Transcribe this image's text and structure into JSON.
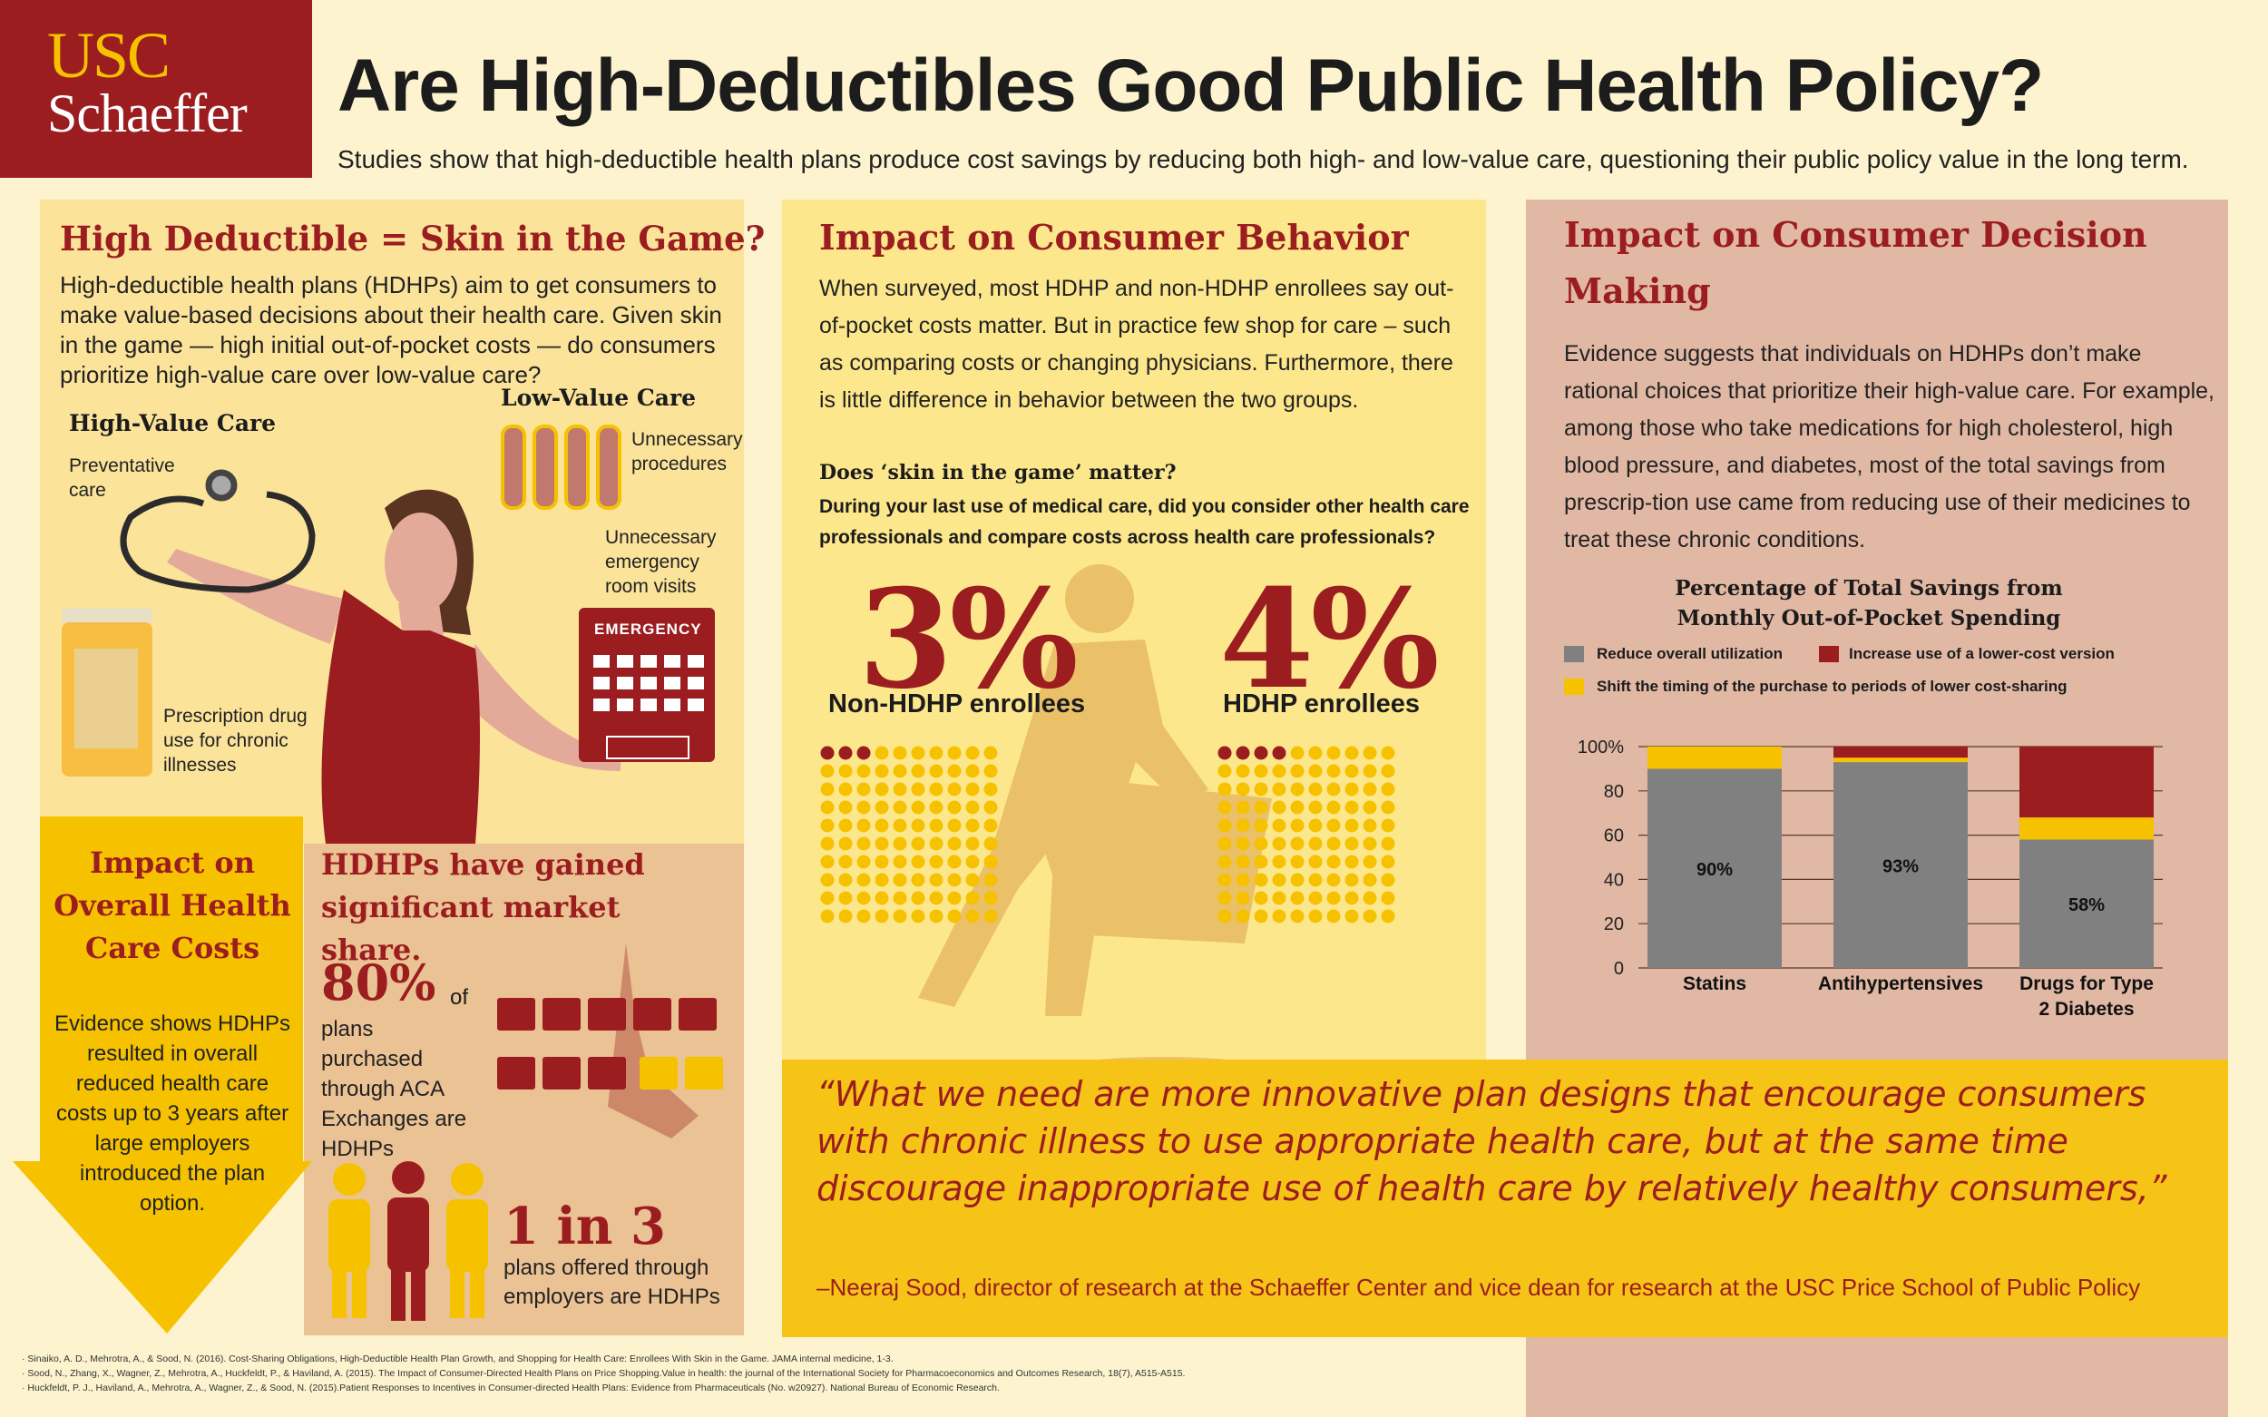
{
  "logo": {
    "line1": "USC",
    "line2": "Schaeffer"
  },
  "header": {
    "title": "Are High-Deductibles Good Public Health Policy?",
    "subtitle": "Studies show that high-deductible health plans produce cost savings by reducing both high- and low-value care, questioning their public policy value in the long term."
  },
  "skin": {
    "heading": "High Deductible = Skin in the Game?",
    "text": "High-deductible health plans (HDHPs) aim to get consumers to make value-based decisions about their health care. Given skin in the game — high initial out-of-pocket costs — do consumers prioritize high-value care over low-value care?",
    "high_value": "High-Value Care",
    "low_value": "Low-Value Care",
    "preventative": "Preventative care",
    "prescription": "Prescription drug use for chronic illnesses",
    "procedures": "Unnecessary procedures",
    "er_visits": "Unnecessary emergency room visits",
    "emergency": "EMERGENCY"
  },
  "costs": {
    "heading": "Impact on Overall Health Care Costs",
    "text": "Evidence shows HDHPs resulted in overall reduced health care costs up to 3 years after large employers introduced the plan option."
  },
  "market": {
    "heading": "HDHPs have gained significant market share.",
    "stat1": "80%",
    "stat1_of": "of",
    "stat1_text": "plans purchased through ACA Exchanges are HDHPs",
    "stat2": "1 in 3",
    "stat2_text": "plans offered through employers are HDHPs"
  },
  "behavior": {
    "heading": "Impact on Consumer Behavior",
    "text": "When surveyed, most HDHP and non-HDHP enrollees say out-of-pocket costs matter. But in practice few shop for care – such as comparing costs or changing physicians. Furthermore, there is little difference in behavior between the two groups.",
    "question_title": "Does ‘skin in the game’ matter?",
    "question": "During your last use of medical care, did you consider other health care professionals and compare costs across health care professionals?",
    "stat_non": "3%",
    "label_non": "Non-HDHP enrollees",
    "stat_hdhp": "4%",
    "label_hdhp": "HDHP enrollees"
  },
  "decision": {
    "heading": "Impact on Consumer Decision Making",
    "text": "Evidence suggests that individuals on HDHPs don’t make rational choices that prioritize their high-value care.  For example, among those who take medications for high cholesterol, high blood pressure, and diabetes, most of the total savings from prescrip-tion use came from  reducing use of their medicines to treat these chronic conditions."
  },
  "chart_data": {
    "type": "bar",
    "stacked": true,
    "title": "Percentage of Total Savings from Monthly Out-of-Pocket Spending",
    "categories": [
      "Statins",
      "Antihypertensives",
      "Drugs for Type 2 Diabetes"
    ],
    "series": [
      {
        "name": "Reduce overall utilization",
        "color": "#808080",
        "values": [
          90,
          93,
          58
        ],
        "labels": [
          "90%",
          "93%",
          "58%"
        ]
      },
      {
        "name": "Shift the timing of the purchase to periods of lower cost-sharing",
        "color": "#f6c200",
        "values": [
          10,
          2,
          10
        ]
      },
      {
        "name": "Increase use of a lower-cost version",
        "color": "#9b1d20",
        "values": [
          0,
          5,
          32
        ]
      }
    ],
    "ylim": [
      0,
      100
    ],
    "yticks": [
      "0",
      "20",
      "40",
      "60",
      "80",
      "100%"
    ],
    "grid": true,
    "legend": "top"
  },
  "quote": {
    "text": "“What we need are more innovative plan designs that encourage consumers with chronic illness to use appropriate health care, but at the same time discourage inappropriate use of health care by relatively healthy consumers,”",
    "attribution": "–Neeraj Sood, director of research at the Schaeffer Center and vice dean for research at the USC Price School of Public Policy"
  },
  "footnotes": [
    "· Sinaiko, A. D., Mehrotra, A., & Sood, N. (2016). Cost-Sharing Obligations, High-Deductible Health Plan Growth, and Shopping for Health Care: Enrollees With Skin in the Game. JAMA internal medicine, 1-3.",
    "· Sood, N., Zhang, X., Wagner, Z., Mehrotra, A., Huckfeldt, P., & Haviland, A. (2015). The Impact of Consumer-Directed Health Plans on Price Shopping.Value in health: the journal of the International Society for Pharmacoeconomics and Outcomes Research, 18(7), A515-A515.",
    "· Huckfeldt, P. J., Haviland, A., Mehrotra, A., Wagner, Z., & Sood, N. (2015).Patient Responses to Incentives in Consumer-directed Health Plans: Evidence from Pharmaceuticals (No. w20927). National Bureau of Economic Research."
  ]
}
